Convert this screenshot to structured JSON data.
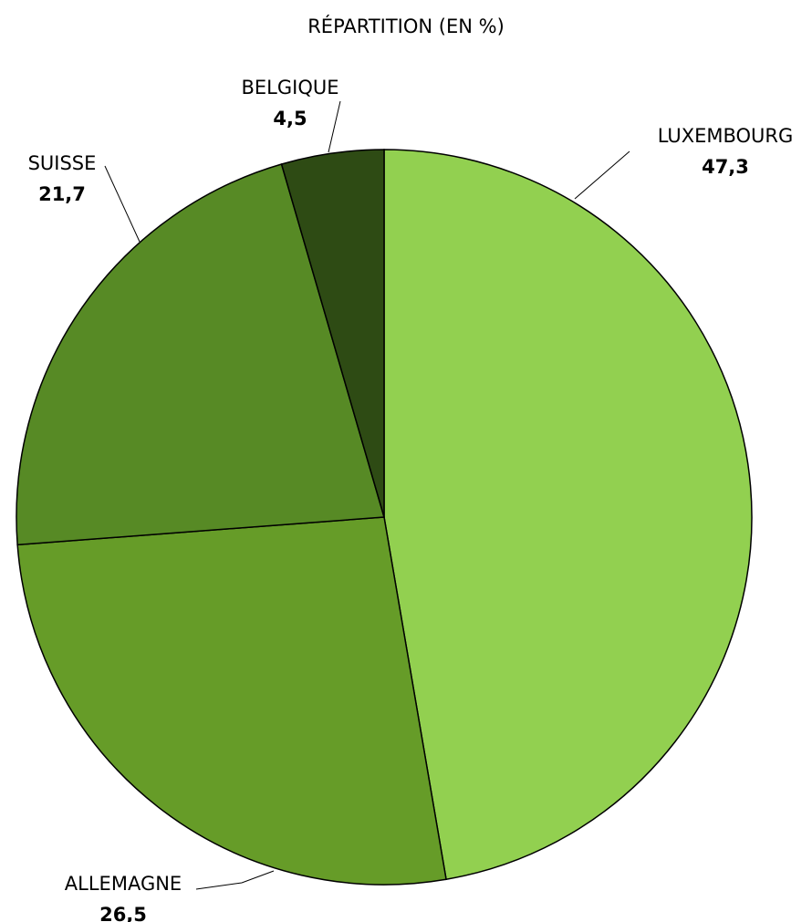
{
  "chart_data": {
    "type": "pie",
    "title": "RÉPARTITION (EN %)",
    "categories": [
      "LUXEMBOURG",
      "ALLEMAGNE",
      "SUISSE",
      "BELGIQUE"
    ],
    "values": [
      47.3,
      26.5,
      21.7,
      4.5
    ],
    "value_labels": [
      "47,3",
      "26,5",
      "21,7",
      "4,5"
    ],
    "colors": [
      "#92d050",
      "#669c28",
      "#578a25",
      "#2e4b14"
    ]
  }
}
